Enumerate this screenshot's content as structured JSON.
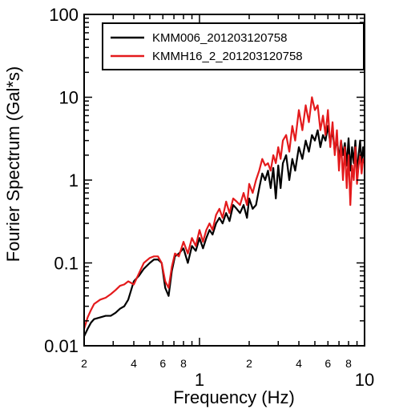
{
  "chart_data": {
    "type": "line",
    "title": "",
    "xlabel": "Frequency (Hz)",
    "ylabel": "Fourier Spectrum (Gal*s)",
    "xscale": "log",
    "yscale": "log",
    "xlim": [
      0.2,
      10
    ],
    "ylim": [
      0.01,
      100
    ],
    "grid": false,
    "legend_position": "top-right",
    "x_major_tick_labels": [
      {
        "value": 1,
        "label": "1"
      },
      {
        "value": 10,
        "label": "10"
      }
    ],
    "x_minor_tick_labels": [
      {
        "value": 0.2,
        "label": "2"
      },
      {
        "value": 0.4,
        "label": "4"
      },
      {
        "value": 0.6,
        "label": "6"
      },
      {
        "value": 0.8,
        "label": "8"
      },
      {
        "value": 2,
        "label": "2"
      },
      {
        "value": 4,
        "label": "4"
      },
      {
        "value": 6,
        "label": "6"
      },
      {
        "value": 8,
        "label": "8"
      }
    ],
    "y_tick_labels": [
      {
        "value": 0.01,
        "label": "0.01"
      },
      {
        "value": 0.1,
        "label": "0.1"
      },
      {
        "value": 1,
        "label": "1"
      },
      {
        "value": 10,
        "label": "10"
      },
      {
        "value": 100,
        "label": "100"
      }
    ],
    "series": [
      {
        "name": "KMM006_201203120758",
        "color": "#000000",
        "x": [
          0.2,
          0.21,
          0.22,
          0.23,
          0.25,
          0.27,
          0.29,
          0.31,
          0.33,
          0.35,
          0.37,
          0.4,
          0.43,
          0.46,
          0.5,
          0.53,
          0.56,
          0.59,
          0.62,
          0.65,
          0.68,
          0.71,
          0.75,
          0.8,
          0.85,
          0.9,
          0.95,
          1.0,
          1.05,
          1.1,
          1.15,
          1.2,
          1.26,
          1.32,
          1.38,
          1.45,
          1.52,
          1.6,
          1.68,
          1.76,
          1.85,
          1.94,
          2.0,
          2.1,
          2.2,
          2.3,
          2.4,
          2.5,
          2.6,
          2.7,
          2.8,
          2.9,
          3.0,
          3.1,
          3.2,
          3.35,
          3.5,
          3.65,
          3.8,
          4.0,
          4.2,
          4.4,
          4.6,
          4.8,
          5.0,
          5.2,
          5.4,
          5.6,
          5.8,
          6.0,
          6.2,
          6.4,
          6.6,
          6.8,
          7.0,
          7.2,
          7.4,
          7.6,
          7.8,
          8.0,
          8.2,
          8.4,
          8.6,
          8.8,
          9.0,
          9.2,
          9.4,
          9.6,
          9.8,
          10.0
        ],
        "y": [
          0.013,
          0.016,
          0.019,
          0.021,
          0.022,
          0.023,
          0.023,
          0.025,
          0.028,
          0.03,
          0.036,
          0.06,
          0.07,
          0.085,
          0.1,
          0.11,
          0.11,
          0.1,
          0.05,
          0.04,
          0.08,
          0.12,
          0.13,
          0.15,
          0.1,
          0.16,
          0.14,
          0.2,
          0.15,
          0.2,
          0.25,
          0.22,
          0.3,
          0.35,
          0.3,
          0.4,
          0.32,
          0.5,
          0.45,
          0.4,
          0.5,
          0.35,
          0.6,
          0.45,
          0.5,
          0.8,
          1.2,
          1.0,
          1.3,
          0.8,
          1.4,
          0.6,
          1.5,
          0.8,
          1.6,
          2.0,
          1.0,
          1.8,
          1.3,
          2.5,
          1.8,
          3.0,
          2.2,
          3.5,
          3.0,
          4.0,
          2.5,
          3.5,
          3.0,
          4.5,
          2.8,
          4.0,
          2.2,
          3.2,
          1.8,
          3.0,
          2.0,
          2.8,
          1.5,
          3.2,
          1.3,
          2.5,
          1.6,
          3.0,
          1.2,
          2.0,
          3.0,
          1.5,
          2.5,
          1.8
        ]
      },
      {
        "name": "KMMH16_2_201203120758",
        "color": "#e41a1c",
        "x": [
          0.2,
          0.21,
          0.22,
          0.23,
          0.25,
          0.27,
          0.29,
          0.31,
          0.33,
          0.35,
          0.37,
          0.4,
          0.43,
          0.46,
          0.5,
          0.53,
          0.56,
          0.59,
          0.62,
          0.65,
          0.68,
          0.71,
          0.75,
          0.8,
          0.85,
          0.9,
          0.95,
          1.0,
          1.05,
          1.1,
          1.15,
          1.2,
          1.26,
          1.32,
          1.38,
          1.45,
          1.52,
          1.6,
          1.68,
          1.76,
          1.85,
          1.94,
          2.0,
          2.1,
          2.2,
          2.3,
          2.4,
          2.5,
          2.6,
          2.7,
          2.8,
          2.9,
          3.0,
          3.1,
          3.2,
          3.35,
          3.5,
          3.65,
          3.8,
          4.0,
          4.2,
          4.4,
          4.6,
          4.8,
          5.0,
          5.2,
          5.4,
          5.6,
          5.8,
          6.0,
          6.2,
          6.4,
          6.6,
          6.8,
          7.0,
          7.2,
          7.4,
          7.6,
          7.8,
          8.0,
          8.2,
          8.4,
          8.6,
          8.8,
          9.0,
          9.2,
          9.4,
          9.6,
          9.8,
          10.0
        ],
        "y": [
          0.016,
          0.022,
          0.027,
          0.032,
          0.036,
          0.038,
          0.042,
          0.047,
          0.053,
          0.055,
          0.06,
          0.055,
          0.075,
          0.1,
          0.115,
          0.12,
          0.12,
          0.1,
          0.06,
          0.05,
          0.09,
          0.13,
          0.12,
          0.18,
          0.13,
          0.2,
          0.16,
          0.25,
          0.18,
          0.25,
          0.3,
          0.25,
          0.38,
          0.45,
          0.35,
          0.55,
          0.4,
          0.6,
          0.55,
          0.5,
          0.7,
          0.5,
          0.9,
          0.7,
          1.0,
          1.3,
          1.8,
          1.5,
          1.6,
          1.3,
          2.0,
          1.6,
          2.5,
          1.8,
          3.0,
          3.5,
          2.2,
          4.5,
          3.0,
          7.0,
          4.0,
          8.0,
          5.0,
          10.0,
          7.0,
          8.0,
          4.0,
          6.0,
          3.5,
          7.0,
          2.5,
          5.0,
          2.0,
          4.0,
          1.3,
          3.0,
          1.0,
          2.5,
          0.8,
          2.0,
          0.5,
          1.5,
          1.0,
          2.5,
          0.9,
          1.5,
          2.0,
          1.2,
          1.8,
          1.6
        ]
      }
    ]
  }
}
